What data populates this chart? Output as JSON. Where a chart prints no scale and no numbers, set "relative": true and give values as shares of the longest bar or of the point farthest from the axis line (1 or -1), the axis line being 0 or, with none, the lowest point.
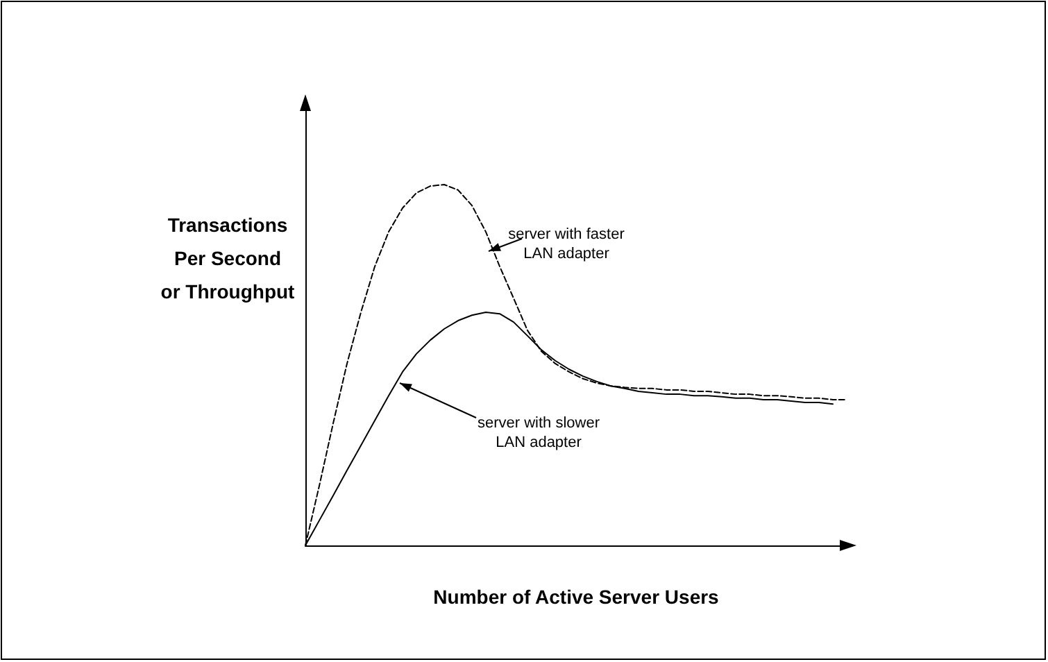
{
  "chart_data": {
    "type": "line",
    "relative": true,
    "xlabel": "Number of Active Server Users",
    "ylabel": "Transactions\nPer Second\nor Throughput",
    "marker": "none",
    "grid": false,
    "categories": [
      null,
      null,
      null,
      null,
      null,
      null,
      null,
      null,
      null,
      null,
      null,
      null,
      null,
      null,
      null,
      null,
      null,
      null,
      null,
      null,
      null,
      null,
      null,
      null,
      null,
      null,
      null,
      null,
      null,
      null,
      null,
      null,
      null,
      null,
      null,
      null,
      null,
      null,
      null,
      null
    ],
    "series": [
      {
        "color": "#000000",
        "line_style": "dashed",
        "values": [
          0,
          0.165,
          0.338,
          0.504,
          0.646,
          0.773,
          0.869,
          0.935,
          0.977,
          0.996,
          1,
          0.985,
          0.942,
          0.869,
          0.773,
          0.685,
          0.596,
          0.538,
          0.504,
          0.481,
          0.462,
          0.45,
          0.442,
          0.438,
          0.435,
          0.435,
          0.431,
          0.431,
          0.427,
          0.427,
          0.423,
          0.419,
          0.419,
          0.415,
          0.415,
          0.412,
          0.408,
          0.408,
          0.404,
          0.404
        ]
      },
      {
        "color": "#000000",
        "line_style": "solid",
        "values": [
          0,
          0.069,
          0.138,
          0.208,
          0.277,
          0.346,
          0.415,
          0.481,
          0.531,
          0.569,
          0.6,
          0.623,
          0.638,
          0.646,
          0.642,
          0.619,
          0.581,
          0.542,
          0.512,
          0.488,
          0.469,
          0.454,
          0.442,
          0.435,
          0.427,
          0.423,
          0.419,
          0.419,
          0.415,
          0.415,
          0.412,
          0.408,
          0.408,
          0.404,
          0.404,
          0.4,
          0.396,
          0.396,
          0.392,
          null
        ]
      }
    ],
    "annotations": [
      "server with faster\nLAN adapter",
      "server with slower\nLAN adapter"
    ]
  }
}
